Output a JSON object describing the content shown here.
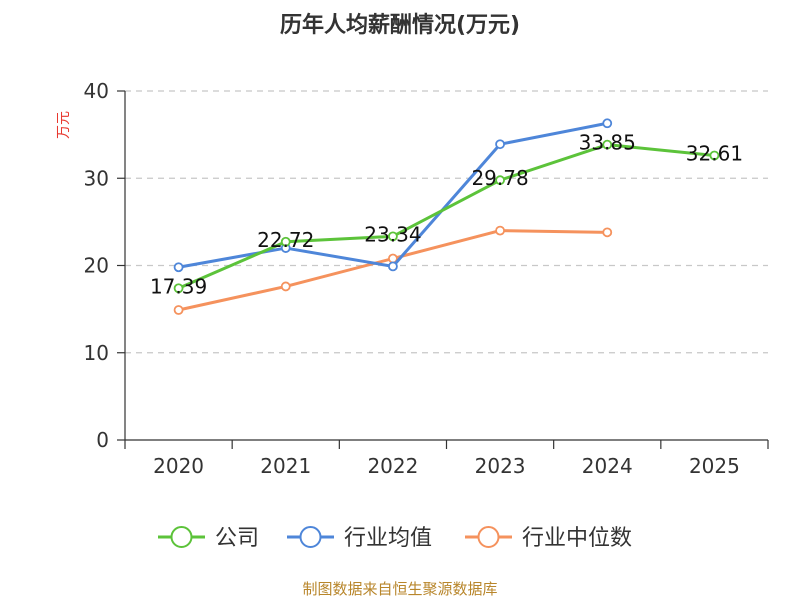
{
  "chart_data": {
    "type": "line",
    "title": "历年人均薪酬情况(万元)",
    "ylabel": "万元",
    "xlabel": "",
    "categories": [
      "2020",
      "2021",
      "2022",
      "2023",
      "2024",
      "2025"
    ],
    "ylim": [
      0,
      40
    ],
    "yticks": [
      0,
      10,
      20,
      30,
      40
    ],
    "grid": true,
    "legend": "bottom-center",
    "series": [
      {
        "name": "公司",
        "color": "#5cc33a",
        "values": [
          17.39,
          22.72,
          23.34,
          29.78,
          33.85,
          32.61
        ],
        "labels": [
          "17.39",
          "22.72",
          "23.34",
          "29.78",
          "33.85",
          "32.61"
        ]
      },
      {
        "name": "行业均值",
        "color": "#4e86d9",
        "values": [
          19.8,
          22.0,
          19.9,
          33.9,
          36.3,
          null
        ]
      },
      {
        "name": "行业中位数",
        "color": "#f5925d",
        "values": [
          14.9,
          17.6,
          20.8,
          24.0,
          23.8,
          null
        ]
      }
    ]
  },
  "source": "制图数据来自恒生聚源数据库"
}
